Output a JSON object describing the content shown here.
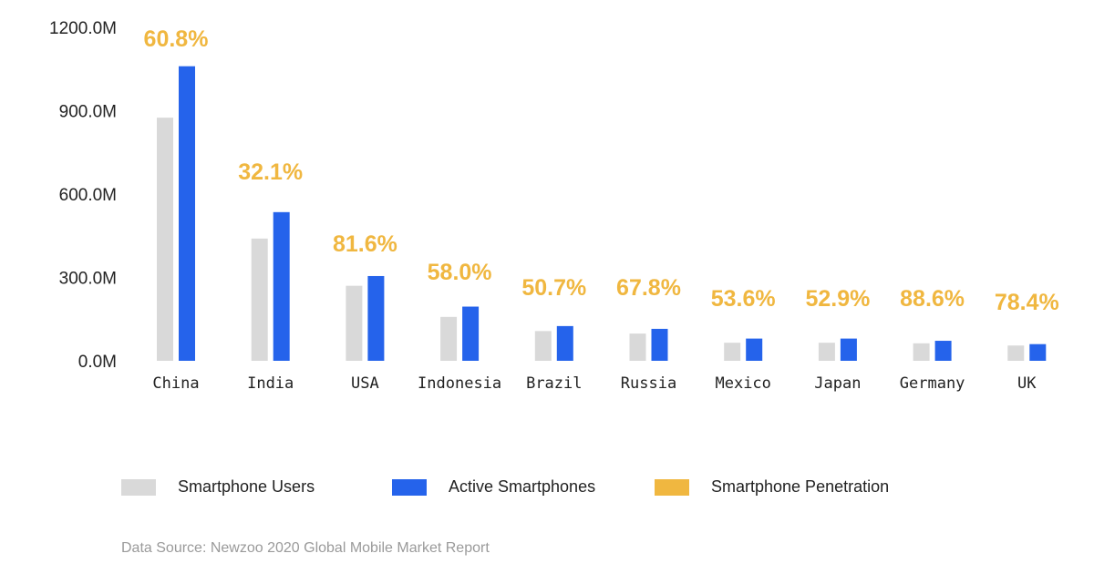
{
  "chart_data": {
    "type": "bar",
    "categories": [
      "China",
      "India",
      "USA",
      "Indonesia",
      "Brazil",
      "Russia",
      "Mexico",
      "Japan",
      "Germany",
      "UK"
    ],
    "series": [
      {
        "name": "Smartphone Users",
        "color": "#d9d9d9",
        "values": [
          875,
          440,
          270,
          158,
          107,
          98,
          65,
          65,
          63,
          55
        ]
      },
      {
        "name": "Active Smartphones",
        "color": "#2563eb",
        "values": [
          1060,
          535,
          305,
          195,
          125,
          115,
          80,
          80,
          72,
          60
        ]
      }
    ],
    "penetration": {
      "name": "Smartphone Penetration",
      "color": "#f0b740",
      "labels": [
        "60.8%",
        "32.1%",
        "81.6%",
        "58.0%",
        "50.7%",
        "67.8%",
        "53.6%",
        "52.9%",
        "88.6%",
        "78.4%"
      ]
    },
    "yticks": [
      0,
      300,
      600,
      900,
      1200
    ],
    "ytick_labels": [
      "0.0M",
      "300.0M",
      "600.0M",
      "900.0M",
      "1200.0M"
    ],
    "ylim": [
      0,
      1200
    ],
    "xlabel": "",
    "ylabel": "",
    "grid": false,
    "legend_position": "bottom"
  },
  "source_note": "Data Source: Newzoo 2020 Global Mobile Market Report"
}
